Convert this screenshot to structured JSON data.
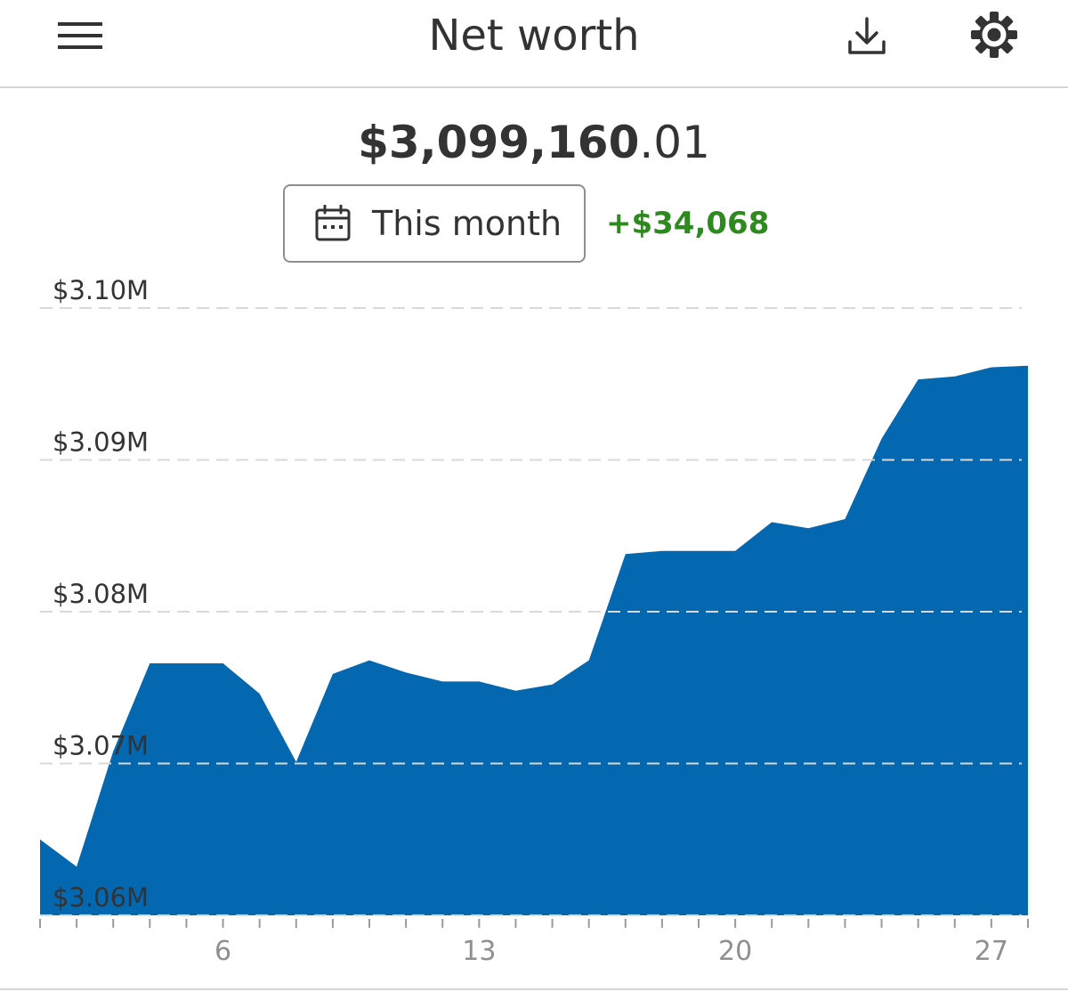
{
  "header": {
    "title": "Net worth",
    "menu_icon": "hamburger-menu-icon",
    "download_icon": "download-icon",
    "settings_icon": "gear-icon"
  },
  "summary": {
    "total_dollars": "$3,099,160",
    "total_cents": ".01",
    "period_label": "This month",
    "period_icon": "calendar-icon",
    "change": "+$34,068"
  },
  "colors": {
    "area_fill": "#0468b1",
    "change_positive": "#2e8a1f",
    "gridline": "#d9d9d9",
    "text": "#333333"
  },
  "chart_data": {
    "type": "area",
    "title": "",
    "xlabel": "",
    "ylabel": "",
    "x": [
      1,
      2,
      3,
      4,
      5,
      6,
      7,
      8,
      9,
      10,
      11,
      12,
      13,
      14,
      15,
      16,
      17,
      18,
      19,
      20,
      21,
      22,
      23,
      24,
      25,
      26,
      27,
      28
    ],
    "series": [
      {
        "values": [
          3065000,
          3063200,
          3070800,
          3076600,
          3076600,
          3076600,
          3074600,
          3070100,
          3075900,
          3076800,
          3076000,
          3075400,
          3075400,
          3074800,
          3075200,
          3076800,
          3083800,
          3084000,
          3084000,
          3084000,
          3085900,
          3085500,
          3086100,
          3091400,
          3095300,
          3095500,
          3096100,
          3096200
        ]
      }
    ],
    "ylim": [
      3060000,
      3100000
    ],
    "y_ticks": [
      3100000,
      3090000,
      3080000,
      3070000,
      3060000
    ],
    "y_tick_labels": [
      "$3.10M",
      "$3.09M",
      "$3.08M",
      "$3.07M",
      "$3.06M"
    ],
    "x_tick_positions": [
      6,
      13,
      20,
      27
    ],
    "x_tick_labels": [
      "6",
      "13",
      "20",
      "27"
    ],
    "grid": true,
    "gridline_style": "dashed"
  }
}
